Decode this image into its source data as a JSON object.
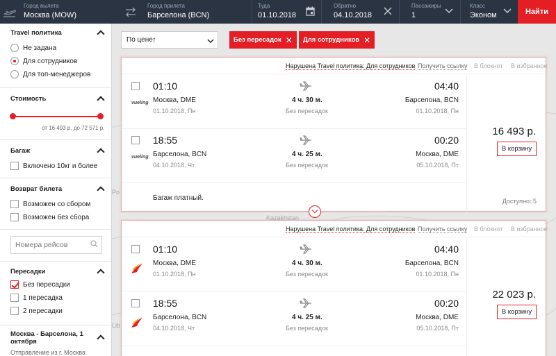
{
  "search": {
    "from_label": "Город вылета",
    "from_value": "Москва (MOW)",
    "to_label": "Город прилета",
    "to_value": "Барселона (BCN)",
    "depart_label": "Туда",
    "depart_value": "01.10.2018",
    "return_label": "Обратно",
    "return_value": "04.10.2018",
    "passengers_label": "Пассажиры",
    "passengers_value": "1",
    "class_label": "Класс",
    "class_value": "Эконом",
    "search_button": "Найти"
  },
  "sidebar": {
    "travel_policy": {
      "title": "Travel политика",
      "options": [
        {
          "label": "Не задана",
          "selected": false
        },
        {
          "label": "Для сотрудников",
          "selected": true
        },
        {
          "label": "Для топ-менеджеров",
          "selected": false
        }
      ]
    },
    "cost": {
      "title": "Стоимость",
      "range_text": "от 16 493 р. до 72 571 р."
    },
    "baggage": {
      "title": "Багаж",
      "options": [
        {
          "label": "Включено 10кг и более",
          "checked": false
        }
      ]
    },
    "refund": {
      "title": "Возврат билета",
      "options": [
        {
          "label": "Возможен со сбором",
          "checked": false
        },
        {
          "label": "Возможен без сбора",
          "checked": false
        }
      ]
    },
    "flight_number": {
      "placeholder": "Номера рейсов"
    },
    "transfers": {
      "title": "Пересадки",
      "options": [
        {
          "label": "Без пересадки",
          "checked": true
        },
        {
          "label": "1 пересадка",
          "checked": false
        },
        {
          "label": "2 пересадки",
          "checked": false
        }
      ]
    },
    "route": {
      "title_line1": "Москва - Барселона, 1",
      "title_line2": "октября",
      "sub": "Отправление из г. Москва"
    }
  },
  "toolbar": {
    "sort_label": "По цене",
    "sort_arrow": "↑",
    "chips": [
      "Без пересадок",
      "Для сотрудников"
    ]
  },
  "map_labels": [
    "Kazakhstan",
    "Po",
    "Lib"
  ],
  "results": [
    {
      "violation": "Нарушена Travel политика: Для сотрудников",
      "get_link": "Получить ссылку",
      "to_notebook": "В блокнот",
      "to_favorites": "В избранное",
      "airline": "vueling",
      "legs": [
        {
          "dep_time": "01:10",
          "dep_city": "Москва, DME",
          "dep_date": "01.10.2018, Пн",
          "duration": "4 ч. 30 м.",
          "stops": "Без пересадок",
          "arr_time": "04:40",
          "arr_city": "Барселона, BCN",
          "arr_date": "01.10.2018, Пн"
        },
        {
          "dep_time": "18:55",
          "dep_city": "Барселона, BCN",
          "dep_date": "04.10.2018, Чт",
          "duration": "4 ч. 25 м.",
          "stops": "Без пересадок",
          "arr_time": "00:20",
          "arr_city": "Москва, DME",
          "arr_date": "05.10.2018, Пт"
        }
      ],
      "baggage_note": "Багаж платный.",
      "price": "16 493 р.",
      "cart_button": "В корзину",
      "available": "Доступно: 5"
    },
    {
      "violation": "Нарушена Travel политика: Для сотрудников",
      "get_link": "Получить ссылку",
      "to_notebook": "В блокнот",
      "to_favorites": "В избранное",
      "airline": "iberia",
      "legs": [
        {
          "dep_time": "01:10",
          "dep_city": "Москва, DME",
          "dep_date": "01.10.2018, Пн",
          "duration": "4 ч. 30 м.",
          "stops": "Без пересадок",
          "arr_time": "04:40",
          "arr_city": "Барселона, BCN",
          "arr_date": "01.10.2018, Пн"
        },
        {
          "dep_time": "18:55",
          "dep_city": "Барселона, BCN",
          "dep_date": "04.10.2018, Чт",
          "duration": "4 ч. 25 м.",
          "stops": "Без пересадок",
          "arr_time": "00:20",
          "arr_city": "Москва, DME",
          "arr_date": "05.10.2018, Пт"
        }
      ],
      "price": "22 023 р.",
      "cart_button": "В корзину"
    }
  ],
  "icons": {
    "departure": "plane-depart-icon",
    "swap": "swap-icon",
    "calendar": "calendar-icon",
    "clear": "close-icon",
    "dropdown": "chevron-down-icon",
    "search": "search-icon",
    "flight": "plane-icon"
  },
  "colors": {
    "accent": "#e31e24",
    "header_bg": "#2b3442"
  }
}
